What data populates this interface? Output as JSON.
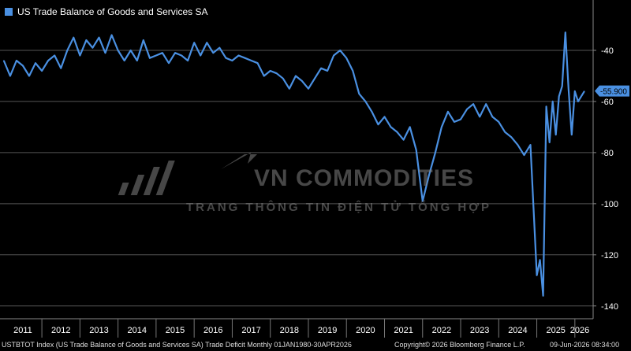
{
  "legend": {
    "label": "US Trade Balance of Goods and Services SA",
    "color": "#4a90e2"
  },
  "watermark": {
    "brand": "VN COMMODITIES",
    "tagline": "TRANG THÔNG TIN ĐIỆN TỬ TỔNG HỢP"
  },
  "footer": {
    "index": "USTBTOT Index (US Trade Balance of Goods and Services SA) Trade Deficit Monthly 01JAN1980-30APR2026",
    "copyright": "Copyright© 2026 Bloomberg Finance L.P.",
    "date": "09-Jun-2026 08:34:00"
  },
  "chart_data": {
    "type": "line",
    "title": "",
    "ylim": [
      -145,
      -28
    ],
    "y_ticks": [
      -40,
      -60,
      -80,
      -100,
      -120,
      -140
    ],
    "y_tick_labels": [
      "-40",
      "-60",
      "-80",
      "-100",
      "-120",
      "-140"
    ],
    "x_labels": [
      "2011",
      "2012",
      "2013",
      "2014",
      "2015",
      "2016",
      "2017",
      "2018",
      "2019",
      "2020",
      "2021",
      "2022",
      "2023",
      "2024",
      "2025",
      "2026"
    ],
    "last_value": -55.9,
    "last_value_label": "-55.900",
    "series": [
      {
        "name": "US Trade Balance of Goods and Services SA",
        "color": "#4a90e2",
        "x": [
          "2011-01",
          "2011-03",
          "2011-05",
          "2011-07",
          "2011-09",
          "2011-11",
          "2012-01",
          "2012-03",
          "2012-05",
          "2012-07",
          "2012-09",
          "2012-11",
          "2013-01",
          "2013-03",
          "2013-05",
          "2013-07",
          "2013-09",
          "2013-11",
          "2014-01",
          "2014-03",
          "2014-05",
          "2014-07",
          "2014-09",
          "2014-11",
          "2015-01",
          "2015-03",
          "2015-05",
          "2015-07",
          "2015-09",
          "2015-11",
          "2016-01",
          "2016-03",
          "2016-05",
          "2016-07",
          "2016-09",
          "2016-11",
          "2017-01",
          "2017-03",
          "2017-05",
          "2017-07",
          "2017-09",
          "2017-11",
          "2018-01",
          "2018-03",
          "2018-05",
          "2018-07",
          "2018-09",
          "2018-11",
          "2019-01",
          "2019-03",
          "2019-05",
          "2019-07",
          "2019-09",
          "2019-11",
          "2020-01",
          "2020-03",
          "2020-05",
          "2020-07",
          "2020-09",
          "2020-11",
          "2021-01",
          "2021-03",
          "2021-05",
          "2021-07",
          "2021-09",
          "2021-11",
          "2022-01",
          "2022-03",
          "2022-05",
          "2022-07",
          "2022-09",
          "2022-11",
          "2023-01",
          "2023-03",
          "2023-05",
          "2023-07",
          "2023-09",
          "2023-11",
          "2024-01",
          "2024-03",
          "2024-05",
          "2024-07",
          "2024-09",
          "2024-11",
          "2025-01",
          "2025-02",
          "2025-03",
          "2025-04",
          "2025-05",
          "2025-06",
          "2025-07",
          "2025-08",
          "2025-09",
          "2025-10",
          "2025-11",
          "2025-12",
          "2026-01",
          "2026-02",
          "2026-03",
          "2026-04"
        ],
        "values": [
          -44,
          -50,
          -44,
          -46,
          -50,
          -45,
          -48,
          -44,
          -42,
          -47,
          -40,
          -35,
          -42,
          -36,
          -39,
          -35,
          -41,
          -34,
          -40,
          -44,
          -40,
          -44,
          -36,
          -43,
          -42,
          -41,
          -45,
          -41,
          -42,
          -44,
          -37,
          -42,
          -37,
          -41,
          -39,
          -43,
          -44,
          -42,
          -43,
          -44,
          -45,
          -50,
          -48,
          -49,
          -51,
          -55,
          -50,
          -52,
          -55,
          -51,
          -47,
          -48,
          -42,
          -40,
          -43,
          -48,
          -57,
          -60,
          -64,
          -69,
          -66,
          -70,
          -72,
          -75,
          -70,
          -79,
          -99,
          -89,
          -80,
          -70,
          -64,
          -68,
          -67,
          -63,
          -61,
          -66,
          -61,
          -66,
          -68,
          -72,
          -74,
          -77,
          -81,
          -77,
          -128,
          -122,
          -136,
          -62,
          -76,
          -60,
          -73,
          -58,
          -54,
          -33,
          -55,
          -73,
          -56,
          -60,
          -58,
          -56
        ]
      }
    ]
  }
}
